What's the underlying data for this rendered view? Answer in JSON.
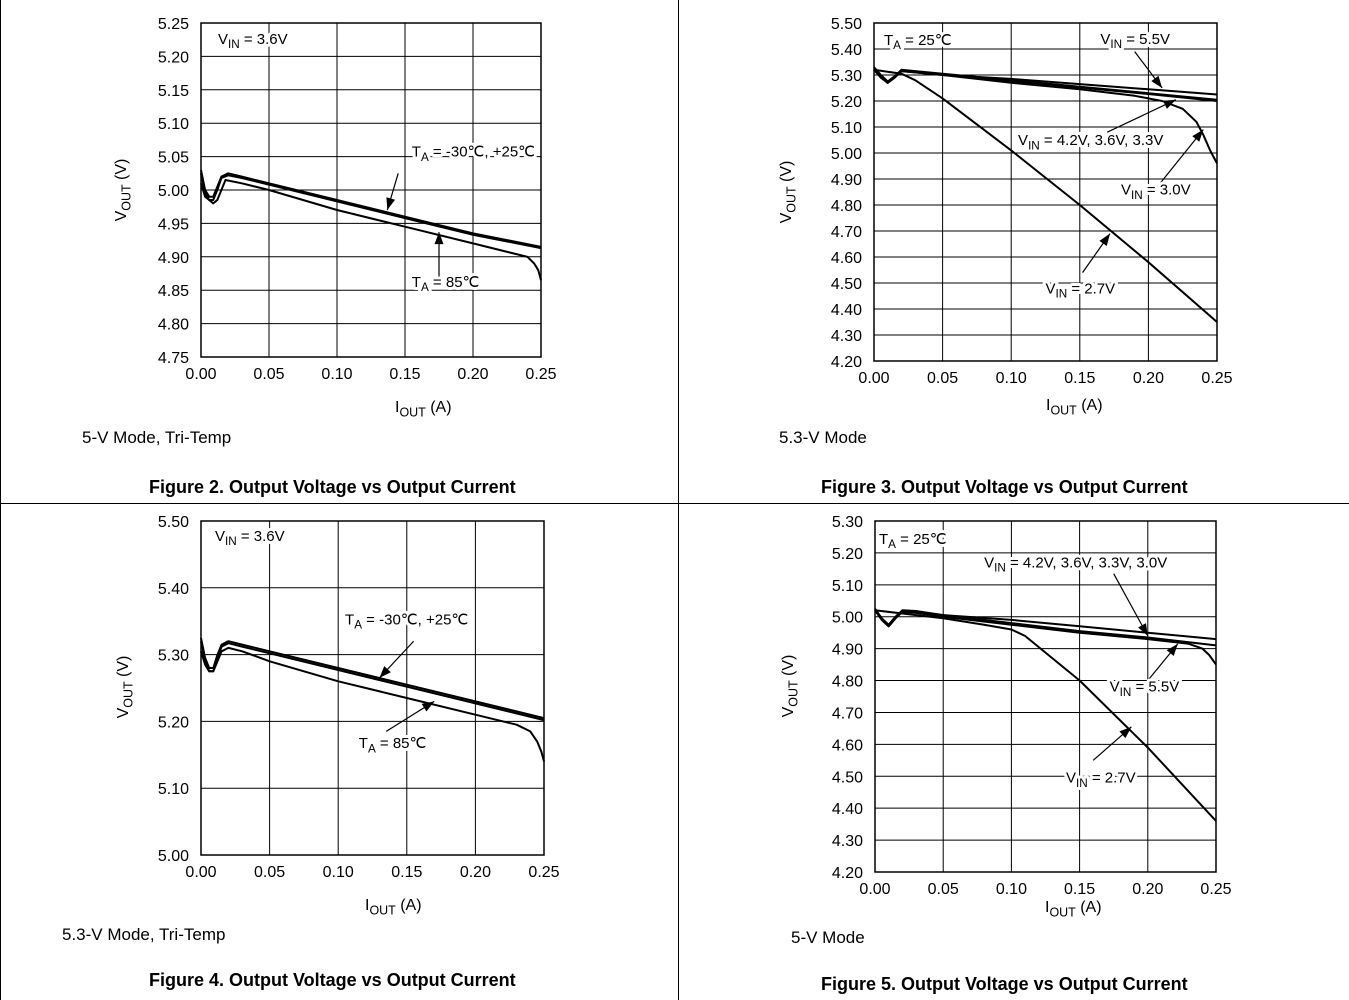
{
  "colors": {
    "ink": "#000000",
    "background": "#ffffff"
  },
  "figures": [
    {
      "caption": "Figure 2. Output Voltage vs Output Current",
      "mode": "5-V Mode, Tri-Temp",
      "inner_label": [
        "V",
        "IN",
        " = 3.6V"
      ],
      "chart_data": {
        "type": "line",
        "xlabel": [
          "I",
          "OUT",
          " (A)"
        ],
        "ylabel": [
          "V",
          "OUT",
          " (V)"
        ],
        "xlim": [
          0,
          0.25
        ],
        "ylim": [
          4.75,
          5.25
        ],
        "xticks": [
          "0.00",
          "0.05",
          "0.10",
          "0.15",
          "0.20",
          "0.25"
        ],
        "yticks": [
          "4.75",
          "4.80",
          "4.85",
          "4.90",
          "4.95",
          "5.00",
          "5.05",
          "5.10",
          "5.15",
          "5.20",
          "5.25"
        ],
        "grid": true,
        "series": [
          {
            "x": [
              0.0,
              0.003,
              0.006,
              0.009,
              0.012,
              0.015,
              0.02,
              0.03,
              0.05,
              0.1,
              0.15,
              0.2,
              0.25
            ],
            "y": [
              5.03,
              5.0,
              4.99,
              4.99,
              5.005,
              5.02,
              5.025,
              5.02,
              5.01,
              4.985,
              4.96,
              4.935,
              4.915
            ]
          },
          {
            "x": [
              0.0,
              0.003,
              0.006,
              0.009,
              0.012,
              0.015,
              0.02,
              0.03,
              0.05,
              0.1,
              0.15,
              0.2,
              0.25
            ],
            "y": [
              5.025,
              4.995,
              4.985,
              4.985,
              5.0,
              5.018,
              5.022,
              5.018,
              5.008,
              4.983,
              4.958,
              4.933,
              4.913
            ]
          },
          {
            "x": [
              0.0,
              0.003,
              0.006,
              0.009,
              0.012,
              0.015,
              0.018,
              0.03,
              0.05,
              0.1,
              0.15,
              0.2,
              0.23,
              0.24,
              0.245,
              0.248,
              0.25
            ],
            "y": [
              5.01,
              4.99,
              4.985,
              4.98,
              4.985,
              5.0,
              5.015,
              5.01,
              5.0,
              4.97,
              4.945,
              4.92,
              4.905,
              4.9,
              4.89,
              4.88,
              4.865
            ]
          }
        ],
        "annotations": [
          {
            "parts": [
              "T",
              "A",
              " = -30℃, +25℃"
            ],
            "lx": 0.155,
            "ly": 5.05,
            "ax": 0.145,
            "ay": 5.025,
            "hx": 0.137,
            "hy": 4.97
          },
          {
            "parts": [
              "T",
              "A",
              " = 85℃"
            ],
            "lx": 0.155,
            "ly": 4.855,
            "ax": 0.175,
            "ay": 4.87,
            "hx": 0.175,
            "hy": 4.937
          }
        ]
      }
    },
    {
      "caption": "Figure 3. Output Voltage vs Output Current",
      "mode": "5.3-V Mode",
      "inner_label": [
        "T",
        "A",
        " = 25℃"
      ],
      "chart_data": {
        "type": "line",
        "xlabel": [
          "I",
          "OUT",
          " (A)"
        ],
        "ylabel": [
          "V",
          "OUT",
          " (V)"
        ],
        "xlim": [
          0,
          0.25
        ],
        "ylim": [
          4.2,
          5.5
        ],
        "xticks": [
          "0.00",
          "0.05",
          "0.10",
          "0.15",
          "0.20",
          "0.25"
        ],
        "yticks": [
          "4.20",
          "4.30",
          "4.40",
          "4.50",
          "4.60",
          "4.70",
          "4.80",
          "4.90",
          "5.00",
          "5.10",
          "5.20",
          "5.30",
          "5.40",
          "5.50"
        ],
        "grid": true,
        "series": [
          {
            "x": [
              0.0,
              0.005,
              0.01,
              0.015,
              0.02,
              0.03,
              0.05,
              0.1,
              0.15,
              0.2,
              0.25
            ],
            "y": [
              5.32,
              5.29,
              5.27,
              5.29,
              5.315,
              5.31,
              5.3,
              5.285,
              5.265,
              5.245,
              5.225
            ]
          },
          {
            "x": [
              0.0,
              0.005,
              0.01,
              0.015,
              0.02,
              0.03,
              0.05,
              0.1,
              0.15,
              0.2,
              0.25
            ],
            "y": [
              5.33,
              5.3,
              5.275,
              5.295,
              5.32,
              5.315,
              5.305,
              5.28,
              5.255,
              5.23,
              5.205
            ]
          },
          {
            "x": [
              0.0,
              0.005,
              0.01,
              0.015,
              0.02,
              0.03,
              0.05,
              0.1,
              0.15,
              0.2,
              0.25
            ],
            "y": [
              5.325,
              5.295,
              5.27,
              5.29,
              5.318,
              5.312,
              5.302,
              5.277,
              5.252,
              5.227,
              5.2
            ]
          },
          {
            "x": [
              0.0,
              0.005,
              0.01,
              0.015,
              0.02,
              0.03,
              0.05,
              0.1,
              0.15,
              0.19,
              0.21,
              0.225,
              0.235,
              0.24,
              0.245,
              0.25
            ],
            "y": [
              5.32,
              5.29,
              5.27,
              5.29,
              5.315,
              5.31,
              5.3,
              5.27,
              5.245,
              5.22,
              5.2,
              5.17,
              5.12,
              5.07,
              5.01,
              4.96
            ]
          },
          {
            "x": [
              0.0,
              0.02,
              0.03,
              0.05,
              0.075,
              0.1,
              0.15,
              0.2,
              0.25
            ],
            "y": [
              5.32,
              5.305,
              5.28,
              5.21,
              5.11,
              5.01,
              4.8,
              4.58,
              4.35
            ]
          }
        ],
        "annotations": [
          {
            "parts": [
              "V",
              "IN",
              " = 5.5V"
            ],
            "lx": 0.165,
            "ly": 5.42,
            "ax": 0.19,
            "ay": 5.39,
            "hx": 0.21,
            "hy": 5.25
          },
          {
            "parts": [
              "V",
              "IN",
              " = 4.2V, 3.6V, 3.3V"
            ],
            "lx": 0.105,
            "ly": 5.03,
            "ax": 0.17,
            "ay": 5.08,
            "hx": 0.22,
            "hy": 5.205
          },
          {
            "parts": [
              "V",
              "IN",
              " = 3.0V"
            ],
            "lx": 0.18,
            "ly": 4.84,
            "ax": 0.205,
            "ay": 4.86,
            "hx": 0.24,
            "hy": 5.09
          },
          {
            "parts": [
              "V",
              "IN",
              " = 2.7V"
            ],
            "lx": 0.125,
            "ly": 4.46,
            "ax": 0.152,
            "ay": 4.54,
            "hx": 0.172,
            "hy": 4.69
          }
        ]
      }
    },
    {
      "caption": "Figure 4. Output Voltage vs Output Current",
      "mode": "5.3-V Mode, Tri-Temp",
      "inner_label": [
        "V",
        "IN",
        " = 3.6V"
      ],
      "chart_data": {
        "type": "line",
        "xlabel": [
          "I",
          "OUT",
          " (A)"
        ],
        "ylabel": [
          "V",
          "OUT",
          " (V)"
        ],
        "xlim": [
          0,
          0.25
        ],
        "ylim": [
          5.0,
          5.5
        ],
        "xticks": [
          "0.00",
          "0.05",
          "0.10",
          "0.15",
          "0.20",
          "0.25"
        ],
        "yticks": [
          "5.00",
          "5.10",
          "5.20",
          "5.30",
          "5.40",
          "5.50"
        ],
        "grid": true,
        "series": [
          {
            "x": [
              0.0,
              0.003,
              0.006,
              0.009,
              0.012,
              0.015,
              0.02,
              0.03,
              0.05,
              0.1,
              0.15,
              0.2,
              0.25
            ],
            "y": [
              5.325,
              5.295,
              5.28,
              5.28,
              5.3,
              5.315,
              5.32,
              5.315,
              5.305,
              5.28,
              5.255,
              5.23,
              5.205
            ]
          },
          {
            "x": [
              0.0,
              0.003,
              0.006,
              0.009,
              0.012,
              0.015,
              0.02,
              0.03,
              0.05,
              0.1,
              0.15,
              0.2,
              0.25
            ],
            "y": [
              5.32,
              5.29,
              5.275,
              5.275,
              5.295,
              5.312,
              5.317,
              5.312,
              5.302,
              5.277,
              5.252,
              5.227,
              5.202
            ]
          },
          {
            "x": [
              0.0,
              0.003,
              0.006,
              0.009,
              0.012,
              0.015,
              0.02,
              0.03,
              0.05,
              0.1,
              0.15,
              0.2,
              0.23,
              0.24,
              0.245,
              0.248,
              0.25
            ],
            "y": [
              5.305,
              5.285,
              5.275,
              5.275,
              5.29,
              5.305,
              5.31,
              5.305,
              5.29,
              5.26,
              5.235,
              5.21,
              5.195,
              5.185,
              5.17,
              5.155,
              5.14
            ]
          }
        ],
        "annotations": [
          {
            "parts": [
              "T",
              "A",
              " = -30℃, +25℃"
            ],
            "lx": 0.105,
            "ly": 5.345,
            "ax": 0.155,
            "ay": 5.32,
            "hx": 0.13,
            "hy": 5.265
          },
          {
            "parts": [
              "T",
              "A",
              " = 85℃"
            ],
            "lx": 0.115,
            "ly": 5.16,
            "ax": 0.135,
            "ay": 5.185,
            "hx": 0.17,
            "hy": 5.23
          }
        ]
      }
    },
    {
      "caption": "Figure 5. Output Voltage vs Output Current",
      "mode": "5-V Mode",
      "inner_label": [
        "T",
        "A",
        " = 25℃"
      ],
      "chart_data": {
        "type": "line",
        "xlabel": [
          "I",
          "OUT",
          " (A)"
        ],
        "ylabel": [
          "V",
          "OUT",
          " (V)"
        ],
        "xlim": [
          0,
          0.25
        ],
        "ylim": [
          4.2,
          5.3
        ],
        "xticks": [
          "0.00",
          "0.05",
          "0.10",
          "0.15",
          "0.20",
          "0.25"
        ],
        "yticks": [
          "4.20",
          "4.30",
          "4.40",
          "4.50",
          "4.60",
          "4.70",
          "4.80",
          "4.90",
          "5.00",
          "5.10",
          "5.20",
          "5.30"
        ],
        "grid": true,
        "series": [
          {
            "x": [
              0.0,
              0.005,
              0.01,
              0.015,
              0.02,
              0.03,
              0.05,
              0.1,
              0.15,
              0.2,
              0.25
            ],
            "y": [
              5.02,
              4.99,
              4.97,
              4.995,
              5.015,
              5.015,
              5.005,
              4.99,
              4.97,
              4.95,
              4.93
            ]
          },
          {
            "x": [
              0.0,
              0.005,
              0.01,
              0.015,
              0.02,
              0.03,
              0.05,
              0.1,
              0.15,
              0.2,
              0.25
            ],
            "y": [
              5.025,
              4.995,
              4.975,
              5.0,
              5.02,
              5.018,
              5.005,
              4.98,
              4.955,
              4.935,
              4.91
            ]
          },
          {
            "x": [
              0.0,
              0.005,
              0.01,
              0.015,
              0.02,
              0.03,
              0.05,
              0.1,
              0.15,
              0.2,
              0.23,
              0.24,
              0.245,
              0.25
            ],
            "y": [
              5.02,
              4.99,
              4.97,
              4.995,
              5.015,
              5.012,
              5.0,
              4.975,
              4.95,
              4.93,
              4.915,
              4.9,
              4.88,
              4.85
            ]
          },
          {
            "x": [
              0.0,
              0.02,
              0.05,
              0.08,
              0.1,
              0.11,
              0.15,
              0.2,
              0.25
            ],
            "y": [
              5.02,
              5.01,
              4.995,
              4.975,
              4.96,
              4.94,
              4.8,
              4.59,
              4.36
            ]
          }
        ],
        "annotations": [
          {
            "parts": [
              "V",
              "IN",
              " = 4.2V, 3.6V, 3.3V, 3.0V"
            ],
            "lx": 0.08,
            "ly": 5.155,
            "ax": 0.175,
            "ay": 5.135,
            "hx": 0.2,
            "hy": 4.94
          },
          {
            "parts": [
              "V",
              "IN",
              " = 5.5V"
            ],
            "lx": 0.172,
            "ly": 4.765,
            "ax": 0.2,
            "ay": 4.8,
            "hx": 0.222,
            "hy": 4.915
          },
          {
            "parts": [
              "V",
              "IN",
              " = 2.7V"
            ],
            "lx": 0.14,
            "ly": 4.48,
            "ax": 0.16,
            "ay": 4.55,
            "hx": 0.188,
            "hy": 4.655
          }
        ]
      }
    }
  ]
}
